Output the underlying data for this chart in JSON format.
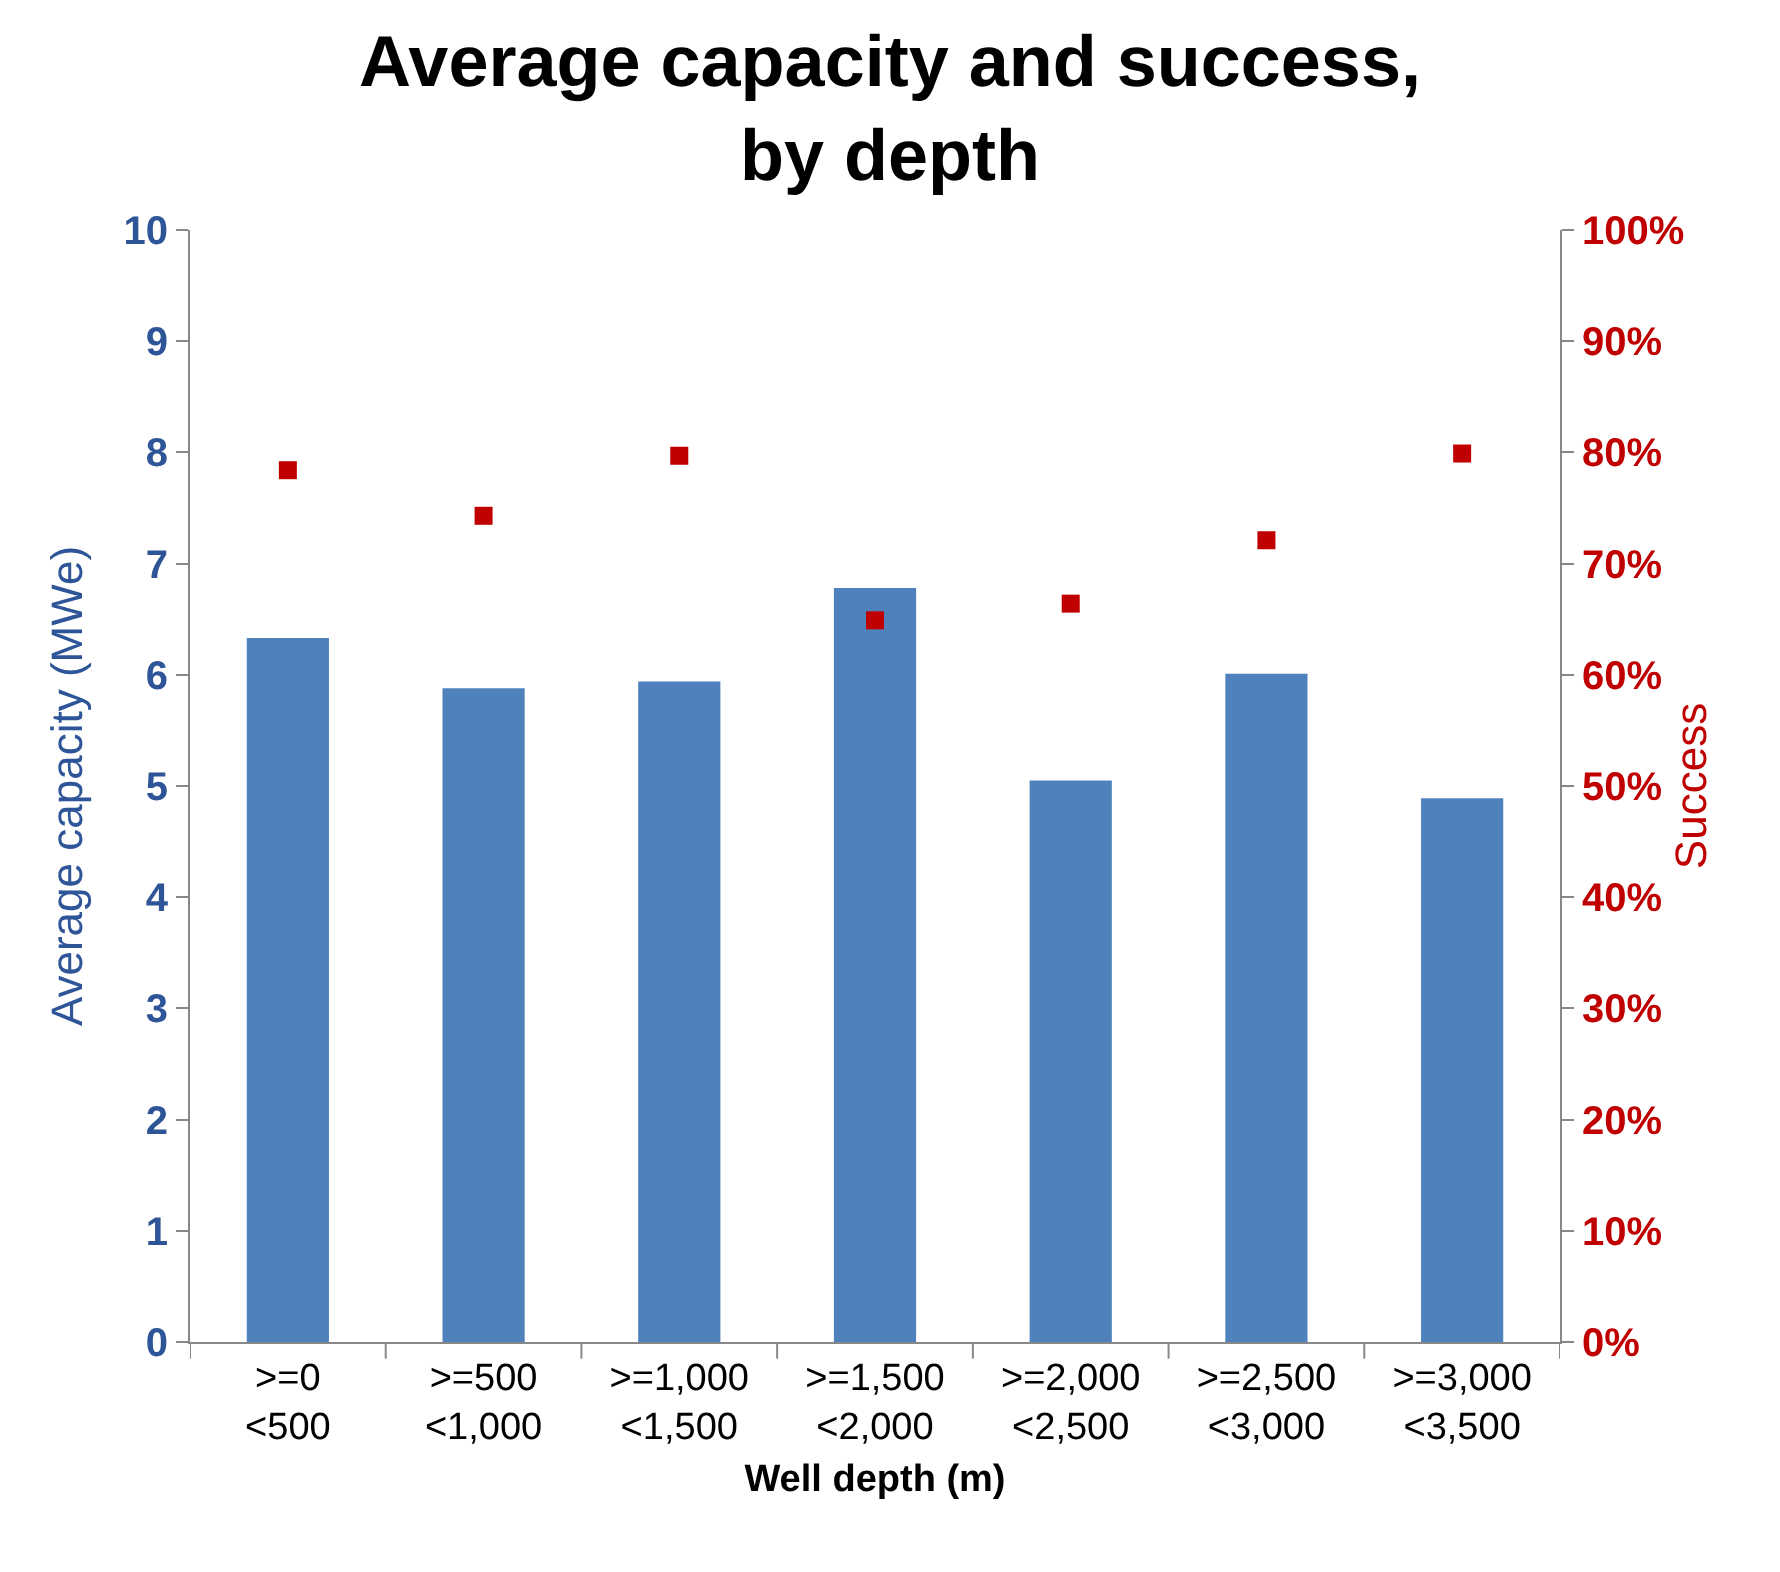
{
  "chart_data": {
    "type": "bar",
    "title": "Average capacity and success,\nby depth",
    "xlabel": "Well depth (m)",
    "ylabel": "Average capacity (MWe)",
    "y2label": "Success",
    "categories": [
      ">=0\n<500",
      ">=500\n<1,000",
      ">=1,000\n<1,500",
      ">=1,500\n<2,000",
      ">=2,000\n<2,500",
      ">=2,500\n<3,000",
      ">=3,000\n<3,500"
    ],
    "series": [
      {
        "color": "#4f81bd",
        "values": [
          6.33,
          5.88,
          5.94,
          6.78,
          5.05,
          6.01,
          4.89
        ]
      },
      {
        "type": "scatter",
        "axis": "y2",
        "marker": "square",
        "color": "#c00000",
        "values": [
          78.4,
          74.3,
          79.7,
          64.9,
          66.4,
          72.1,
          79.9
        ]
      }
    ],
    "ylim": [
      0,
      10
    ],
    "yticks": [
      0,
      1,
      2,
      3,
      4,
      5,
      6,
      7,
      8,
      9,
      10
    ],
    "y2lim": [
      0,
      100
    ],
    "y2ticks": [
      {
        "value": 0,
        "label": "0%"
      },
      {
        "value": 10,
        "label": "10%"
      },
      {
        "value": 20,
        "label": "20%"
      },
      {
        "value": 30,
        "label": "30%"
      },
      {
        "value": 40,
        "label": "40%"
      },
      {
        "value": 50,
        "label": "50%"
      },
      {
        "value": 60,
        "label": "60%"
      },
      {
        "value": 70,
        "label": "70%"
      },
      {
        "value": 80,
        "label": "80%"
      },
      {
        "value": 90,
        "label": "90%"
      },
      {
        "value": 100,
        "label": "100%"
      }
    ],
    "grid": false,
    "legend": false
  }
}
